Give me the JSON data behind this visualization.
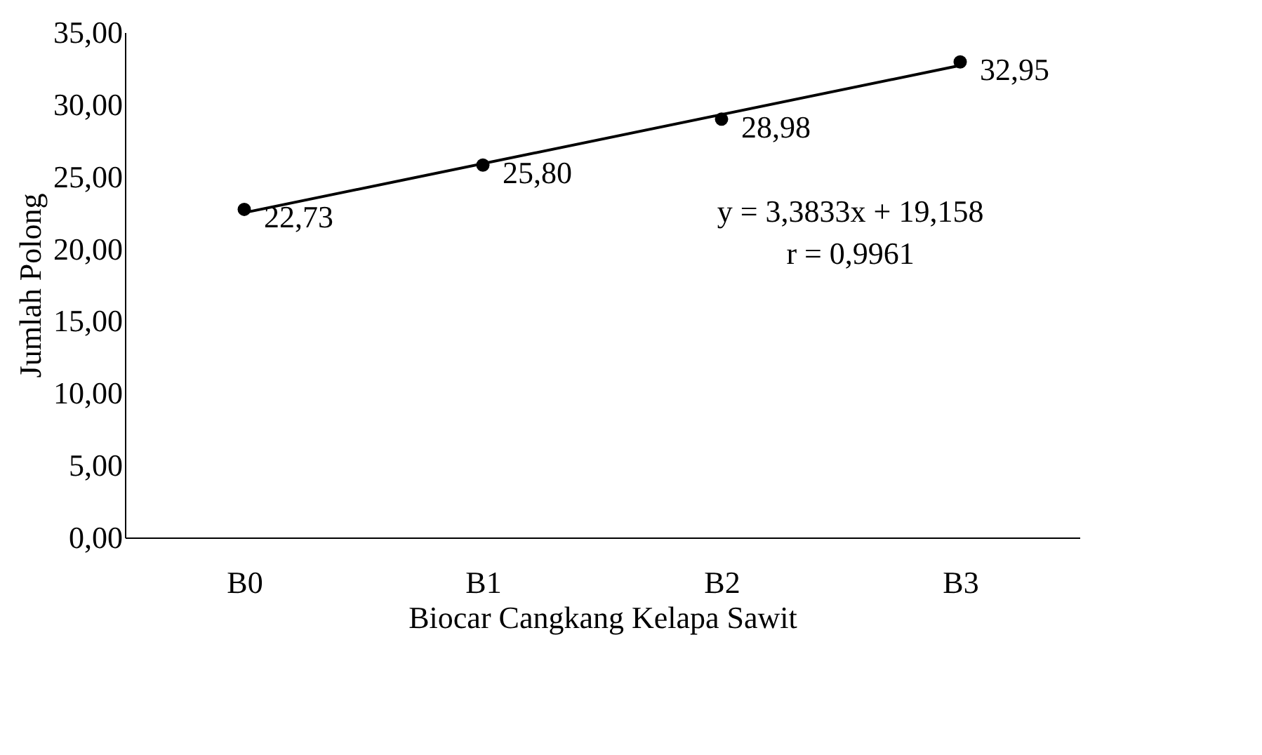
{
  "chart_data": {
    "type": "scatter",
    "xlabel": "Biocar Cangkang Kelapa Sawit",
    "ylabel": "Jumlah Polong",
    "categories": [
      "B0",
      "B1",
      "B2",
      "B3"
    ],
    "series": [
      {
        "color": "#000000",
        "marker": "circle",
        "values": [
          22.73,
          25.8,
          28.98,
          32.95
        ],
        "value_labels": [
          "22,73",
          "25,80",
          "28,98",
          "32,95"
        ]
      },
      {
        "type": "line",
        "color": "#000000",
        "x": [
          "B0",
          "B3"
        ],
        "values": [
          22.5,
          32.7
        ]
      }
    ],
    "ylim": [
      0,
      35
    ],
    "yticks": [
      {
        "value": 0,
        "label": "0,00"
      },
      {
        "value": 5,
        "label": "5,00"
      },
      {
        "value": 10,
        "label": "10,00"
      },
      {
        "value": 15,
        "label": "15,00"
      },
      {
        "value": 20,
        "label": "20,00"
      },
      {
        "value": 25,
        "label": "25,00"
      },
      {
        "value": 30,
        "label": "30,00"
      },
      {
        "value": 35,
        "label": "35,00"
      }
    ],
    "annotations": [
      "y = 3,3833x + 19,158",
      "r = 0,9961"
    ],
    "grid": false
  }
}
